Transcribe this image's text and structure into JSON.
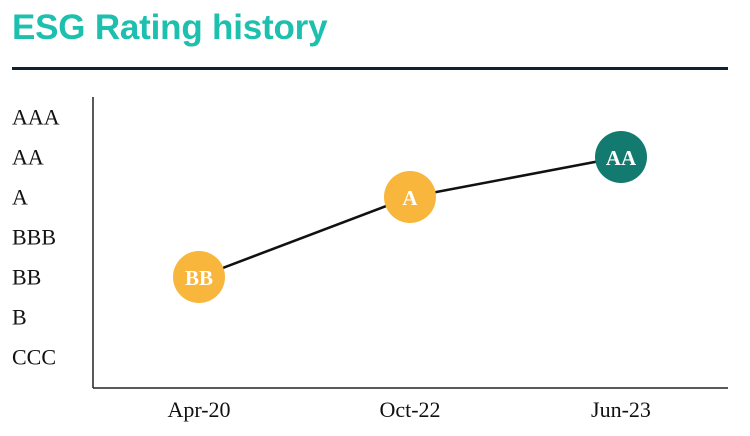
{
  "header": {
    "title": "ESG Rating history",
    "title_color": "#1dbfae",
    "rule_color": "#0e2233"
  },
  "colors": {
    "line": "#111111",
    "axis": "#222222"
  },
  "chart_data": {
    "type": "line",
    "title": "ESG Rating history",
    "xlabel": "",
    "ylabel": "",
    "categories": [
      "Apr-20",
      "Oct-22",
      "Jun-23"
    ],
    "y_levels": [
      "AAA",
      "AA",
      "A",
      "BBB",
      "BB",
      "B",
      "CCC"
    ],
    "series": [
      {
        "values": [
          "BB",
          "A",
          "AA"
        ],
        "point_colors": [
          "#f8b63c",
          "#f8b63c",
          "#137a70"
        ]
      }
    ],
    "grid": false,
    "legend": "none"
  }
}
